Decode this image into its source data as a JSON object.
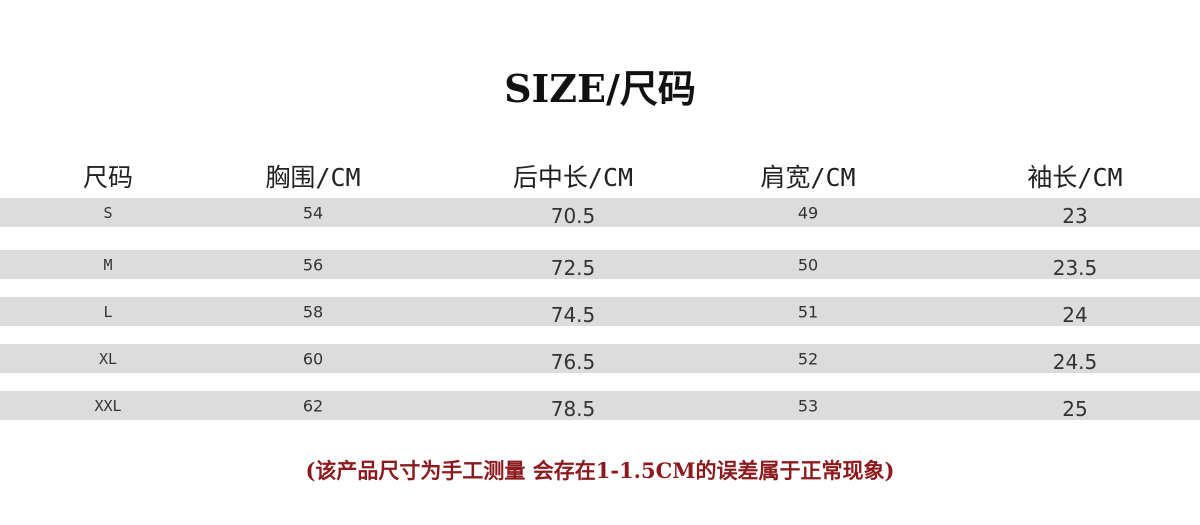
{
  "title": "SIZE/尺码",
  "headers": [
    "尺码",
    "胸围/CM",
    "后中长/CM",
    "肩宽/CM",
    "袖长/CM"
  ],
  "rows": [
    [
      "S",
      "54",
      "70.5",
      "49",
      "23"
    ],
    [
      "M",
      "56",
      "72.5",
      "50",
      "23.5"
    ],
    [
      "L",
      "58",
      "74.5",
      "51",
      "24"
    ],
    [
      "XL",
      "60",
      "76.5",
      "52",
      "24.5"
    ],
    [
      "XXL",
      "62",
      "78.5",
      "53",
      "25"
    ]
  ],
  "note": "(该产品尺寸为手工测量 会存在1-1.5CM的误差属于正常现象)",
  "colors": {
    "band": "#dcdcdc",
    "note": "#8b1a1f"
  }
}
